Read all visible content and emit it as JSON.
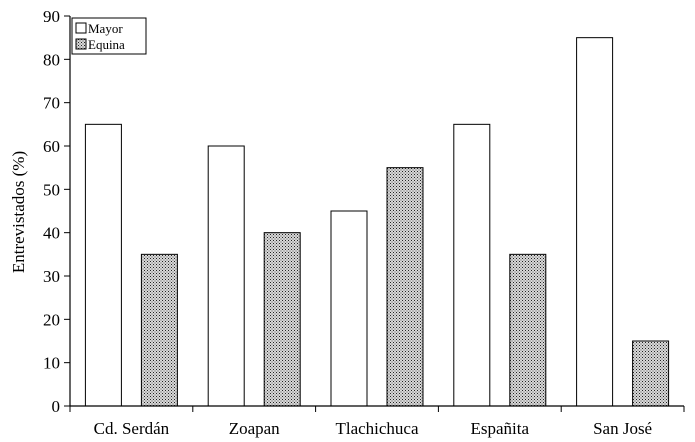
{
  "chart_data": {
    "type": "bar",
    "title": "",
    "xlabel": "",
    "ylabel": "Entrevistados (%)",
    "ylim": [
      0,
      90
    ],
    "yticks": [
      0,
      10,
      20,
      30,
      40,
      50,
      60,
      70,
      80,
      90
    ],
    "grid": false,
    "legend_position": "top-left",
    "categories": [
      "Cd. Serdán",
      "Zoapan",
      "Tlachichuca",
      "Españita",
      "San José"
    ],
    "series": [
      {
        "name": "Mayor",
        "values": [
          65,
          60,
          45,
          65,
          85
        ],
        "fill": "#ffffff"
      },
      {
        "name": "Equina",
        "values": [
          35,
          40,
          55,
          35,
          15
        ],
        "fill": "#8a8a8a"
      }
    ]
  }
}
